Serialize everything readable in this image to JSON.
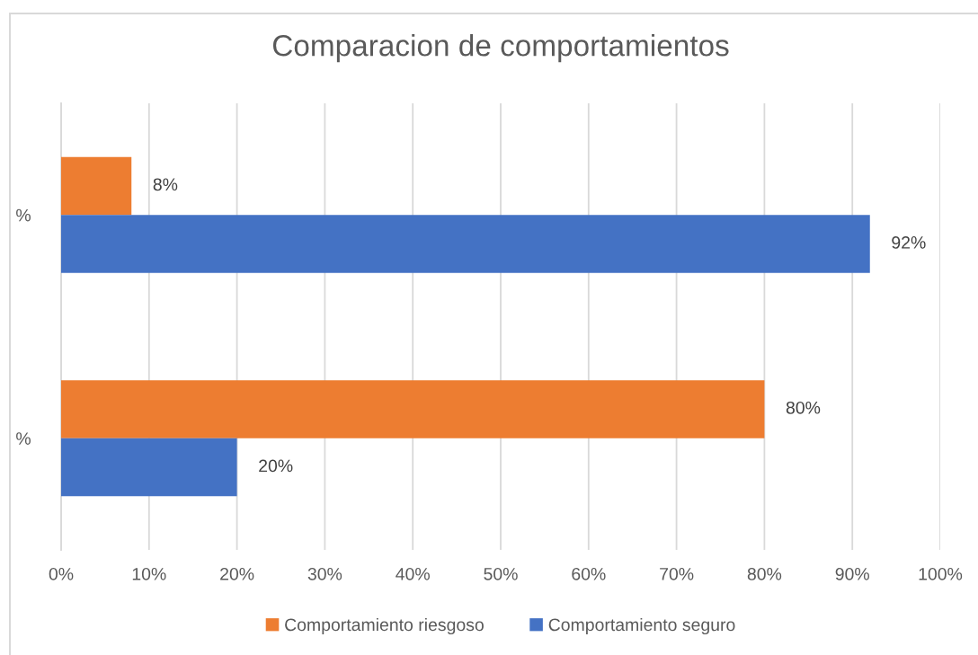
{
  "chart_data": {
    "type": "bar",
    "orientation": "horizontal",
    "title": "Comparacion de comportamientos",
    "categories": [
      "%",
      "%"
    ],
    "series": [
      {
        "name": "Comportamiento riesgoso",
        "color": "#ed7d31",
        "values": [
          8,
          80
        ],
        "value_labels": [
          "8%",
          "80%"
        ]
      },
      {
        "name": "Comportamiento seguro",
        "color": "#4472c4",
        "values": [
          92,
          20
        ],
        "value_labels": [
          "92%",
          "20%"
        ]
      }
    ],
    "xlim": [
      0,
      100
    ],
    "xticks": [
      {
        "value": 0,
        "label": "0%"
      },
      {
        "value": 10,
        "label": "10%"
      },
      {
        "value": 20,
        "label": "20%"
      },
      {
        "value": 30,
        "label": "30%"
      },
      {
        "value": 40,
        "label": "40%"
      },
      {
        "value": 50,
        "label": "50%"
      },
      {
        "value": 60,
        "label": "60%"
      },
      {
        "value": 70,
        "label": "70%"
      },
      {
        "value": 80,
        "label": "80%"
      },
      {
        "value": 90,
        "label": "90%"
      },
      {
        "value": 100,
        "label": "100%"
      }
    ],
    "grid": "x",
    "legend": "bottom"
  }
}
